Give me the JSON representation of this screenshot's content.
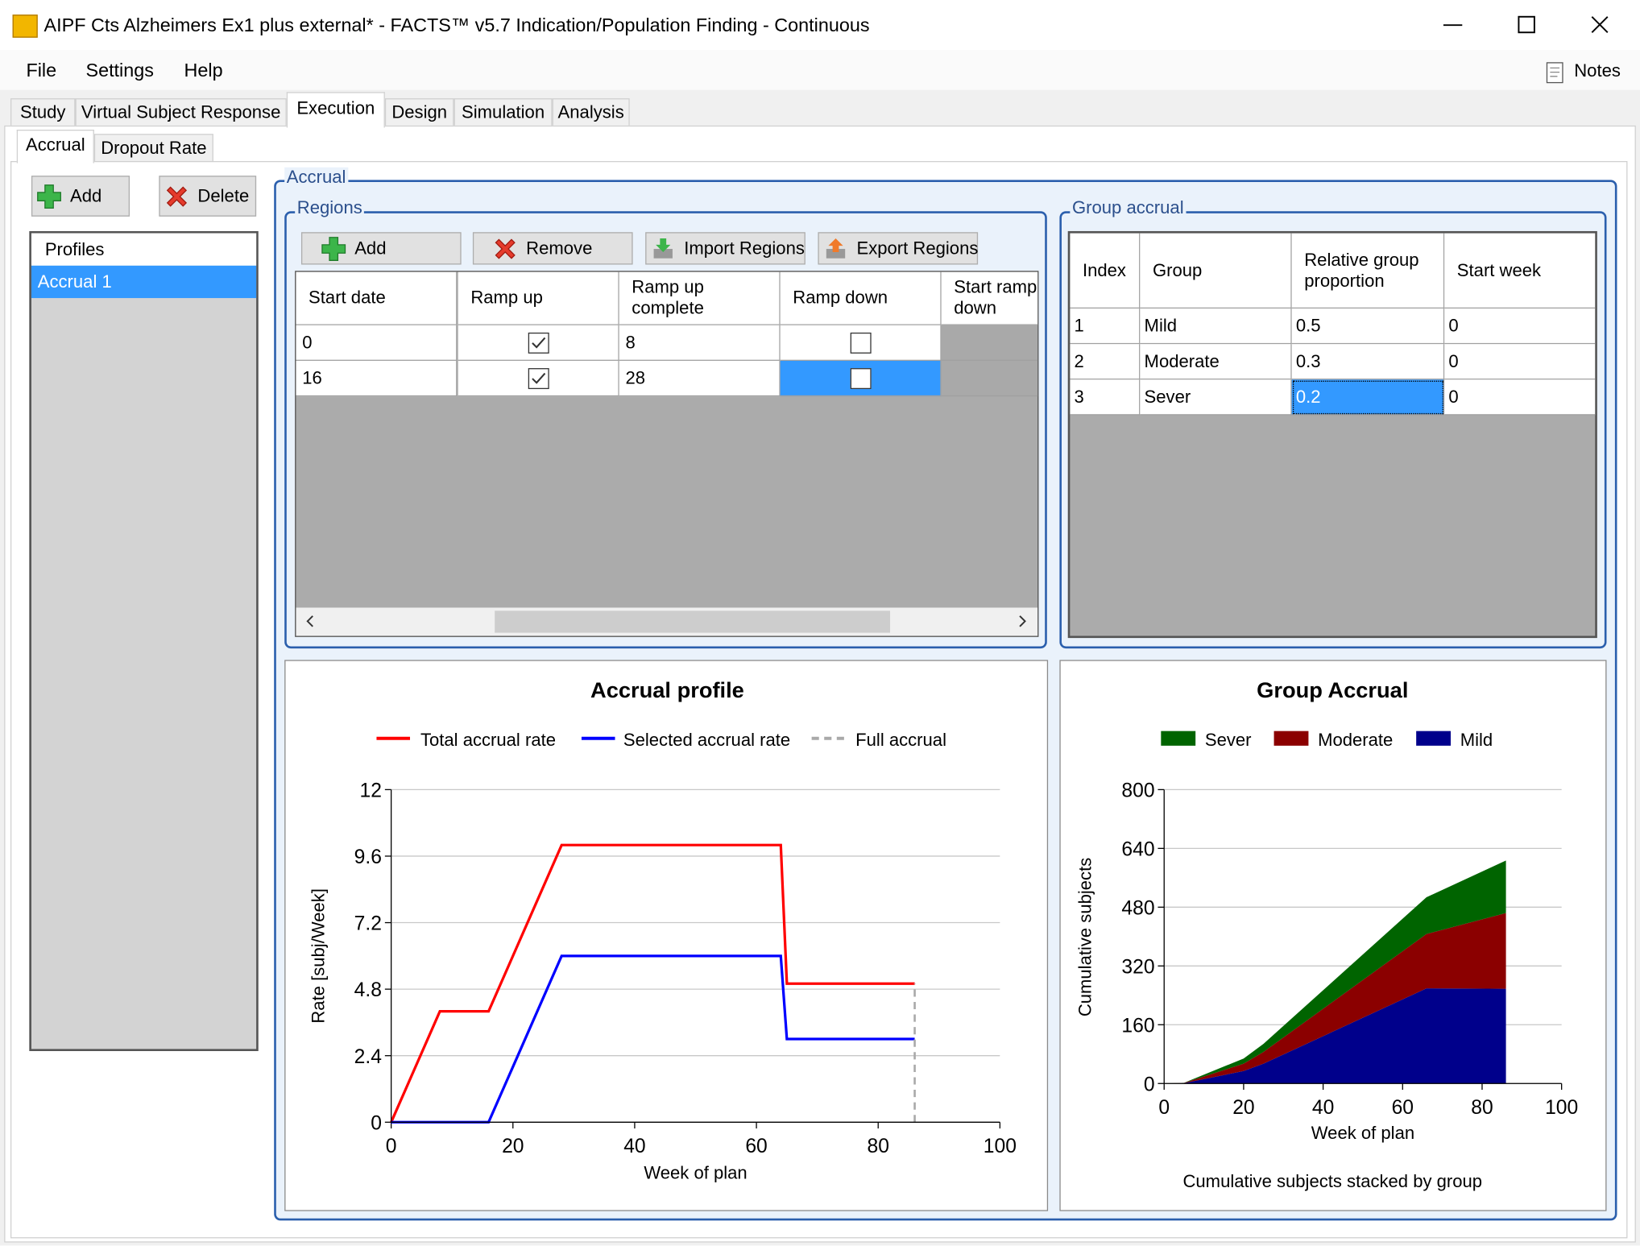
{
  "window": {
    "title": "AIPF Cts Alzheimers Ex1 plus external* - FACTS™ v5.7 Indication/Population Finding - Continuous",
    "notes": "Notes"
  },
  "menu": [
    "File",
    "Settings",
    "Help"
  ],
  "tabs": [
    "Study",
    "Virtual Subject Response",
    "Execution",
    "Design",
    "Simulation",
    "Analysis"
  ],
  "subtabs": [
    "Accrual",
    "Dropout Rate"
  ],
  "profiles": {
    "buttons": [
      "Add",
      "Delete"
    ],
    "header": "Profiles",
    "items": [
      "Accrual 1"
    ]
  },
  "accrual": {
    "title": "Accrual"
  },
  "regions": {
    "title": "Regions",
    "buttons": [
      "Add",
      "Remove",
      "Import Regions",
      "Export Regions"
    ],
    "columns": [
      "Start date",
      "Ramp up",
      "Ramp up complete",
      "Ramp down",
      "Start ramp down"
    ],
    "rows": [
      [
        "0",
        true,
        "8",
        false
      ],
      [
        "16",
        true,
        "28",
        false
      ]
    ]
  },
  "group_accrual": {
    "title": "Group accrual",
    "columns": [
      "Index",
      "Group",
      "Relative group proportion",
      "Start week"
    ],
    "rows": [
      [
        "1",
        "Mild",
        "0.5",
        "0"
      ],
      [
        "2",
        "Moderate",
        "0.3",
        "0"
      ],
      [
        "3",
        "Sever",
        "0.2",
        "0"
      ]
    ]
  },
  "chart_data": [
    {
      "type": "line",
      "title": "Accrual profile",
      "xlabel": "Week of plan",
      "ylabel": "Rate [subj/Week]",
      "xlim": [
        0,
        100
      ],
      "xticks": [
        0,
        20,
        40,
        60,
        80,
        100
      ],
      "ylim": [
        0,
        12
      ],
      "yticks": [
        0,
        2.4,
        4.8,
        7.2,
        9.6,
        12
      ],
      "grid": true,
      "series": [
        {
          "name": "Total accrual rate",
          "color": "#ff0000",
          "x": [
            0,
            8,
            16,
            28,
            64,
            65,
            86
          ],
          "values": [
            0,
            4,
            4,
            10,
            10,
            5,
            5
          ]
        },
        {
          "name": "Selected accrual rate",
          "color": "#0000ff",
          "x": [
            0,
            16,
            28,
            64,
            65,
            86
          ],
          "values": [
            0,
            0,
            6,
            6,
            3,
            3
          ]
        },
        {
          "name": "Full accrual",
          "color": "#a9a9a9",
          "dashed": true,
          "x": [
            86,
            86
          ],
          "values": [
            0,
            5
          ]
        }
      ]
    },
    {
      "type": "stacked_area",
      "title": "Group Accrual",
      "xlabel": "Week of plan",
      "ylabel": "Cumulative subjects",
      "footnote": "Cumulative subjects stacked by group",
      "xlim": [
        0,
        100
      ],
      "xticks": [
        0,
        20,
        40,
        60,
        80,
        100
      ],
      "ylim": [
        0,
        800
      ],
      "yticks": [
        0,
        160,
        320,
        480,
        640,
        800
      ],
      "grid": true,
      "x": [
        0,
        5,
        20,
        25,
        66,
        86
      ],
      "series": [
        {
          "name": "Sever",
          "color": "#006400",
          "values": [
            0,
            0.4,
            14,
            22,
            100,
            143
          ]
        },
        {
          "name": "Moderate",
          "color": "#8b0000",
          "values": [
            0,
            0.6,
            20,
            32,
            148,
            206
          ]
        },
        {
          "name": "Mild",
          "color": "#00008b",
          "values": [
            0,
            1,
            34,
            54,
            259,
            258
          ]
        }
      ]
    }
  ]
}
